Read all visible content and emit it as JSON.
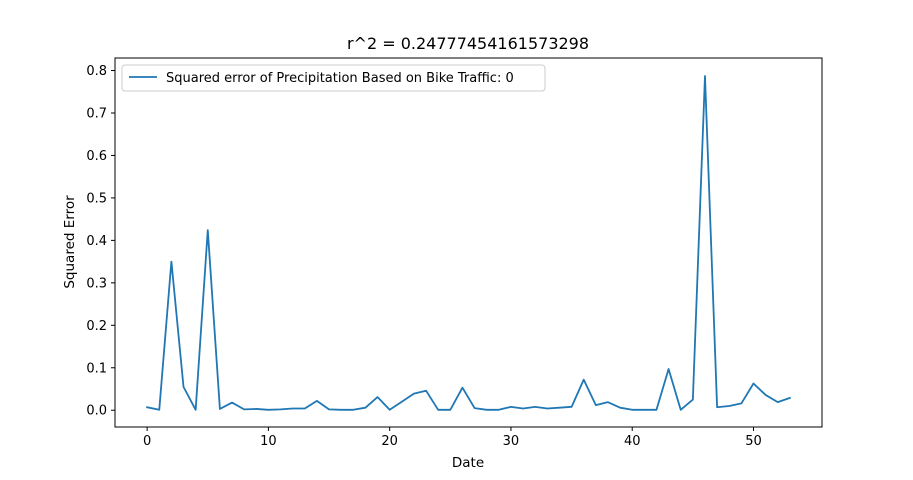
{
  "chart_data": {
    "type": "line",
    "title": "r^2 = 0.24777454161573298",
    "xlabel": "Date",
    "ylabel": "Squared Error",
    "xlim": [
      -2.65,
      55.65
    ],
    "ylim": [
      -0.0395,
      0.8295
    ],
    "xticks": [
      0,
      10,
      20,
      30,
      40,
      50
    ],
    "yticks": [
      0.0,
      0.1,
      0.2,
      0.3,
      0.4,
      0.5,
      0.6,
      0.7,
      0.8
    ],
    "ytick_labels": [
      "0.0",
      "0.1",
      "0.2",
      "0.3",
      "0.4",
      "0.5",
      "0.6",
      "0.7",
      "0.8"
    ],
    "grid": false,
    "legend_position": "upper-left",
    "series": [
      {
        "name": "Squared error of Precipitation Based on Bike Traffic: 0",
        "color": "#1f77b4",
        "x": [
          0,
          1,
          2,
          3,
          4,
          5,
          6,
          7,
          8,
          9,
          10,
          11,
          12,
          13,
          14,
          15,
          16,
          17,
          18,
          19,
          20,
          21,
          22,
          23,
          24,
          25,
          26,
          27,
          28,
          29,
          30,
          31,
          32,
          33,
          34,
          35,
          36,
          37,
          38,
          39,
          40,
          41,
          42,
          43,
          44,
          45,
          46,
          47,
          48,
          49,
          50,
          51,
          52,
          53
        ],
        "values": [
          0.007,
          0.001,
          0.35,
          0.055,
          0.001,
          0.424,
          0.003,
          0.018,
          0.002,
          0.003,
          0.001,
          0.002,
          0.004,
          0.004,
          0.022,
          0.002,
          0.001,
          0.001,
          0.006,
          0.031,
          0.001,
          0.02,
          0.039,
          0.046,
          0.001,
          0.001,
          0.053,
          0.005,
          0.001,
          0.001,
          0.008,
          0.004,
          0.008,
          0.004,
          0.006,
          0.008,
          0.072,
          0.012,
          0.019,
          0.006,
          0.001,
          0.001,
          0.001,
          0.097,
          0.001,
          0.025,
          0.787,
          0.007,
          0.01,
          0.016,
          0.063,
          0.036,
          0.019,
          0.029
        ]
      }
    ]
  }
}
